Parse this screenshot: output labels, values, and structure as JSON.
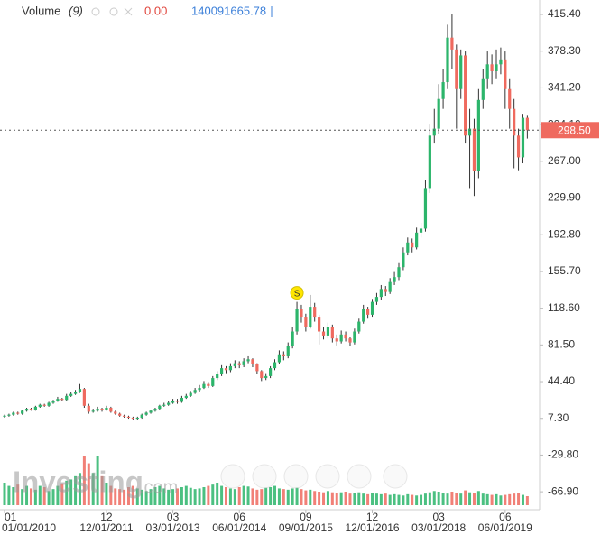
{
  "chart_data": {
    "type": "candlestick",
    "legend": {
      "name": "Volume",
      "period": "(9)",
      "change": "0.00"
    },
    "watermark": {
      "brand": "Investing",
      "suffix": ".com"
    },
    "colors": {
      "up": "#2cb56b",
      "down": "#ef6a5f",
      "wick": "#333333",
      "volume_up": "#2cb56b",
      "volume_down": "#ef6a5f",
      "price_tag": "#ef6a5f"
    },
    "open": [
      9,
      10,
      11,
      13,
      12,
      15,
      17,
      16,
      19,
      21,
      20,
      23,
      25,
      27,
      26,
      30,
      32,
      34,
      37,
      20,
      14,
      15,
      17,
      16,
      18,
      14,
      12,
      10,
      9,
      8,
      7,
      8,
      11,
      13,
      15,
      17,
      20,
      21,
      23,
      25,
      24,
      28,
      30,
      33,
      36,
      38,
      42,
      40,
      48,
      52,
      58,
      56,
      60,
      63,
      61,
      65,
      67,
      62,
      55,
      48,
      50,
      58,
      64,
      72,
      70,
      80,
      95,
      118,
      110,
      100,
      120,
      110,
      95,
      91,
      100,
      88,
      85,
      92,
      88,
      84,
      95,
      105,
      118,
      112,
      125,
      130,
      138,
      135,
      145,
      150,
      160,
      175,
      185,
      180,
      195,
      199,
      240,
      293,
      300,
      330,
      347,
      392,
      380,
      340,
      374,
      293,
      300,
      257,
      329,
      350,
      365,
      358,
      365,
      370,
      340,
      320,
      293,
      271,
      311
    ],
    "high": [
      11,
      12,
      14,
      14,
      16,
      18,
      18,
      20,
      22,
      22,
      24,
      26,
      29,
      28,
      32,
      34,
      36,
      42,
      38,
      22,
      17,
      19,
      18,
      20,
      19,
      15,
      13,
      11,
      10,
      9,
      9,
      12,
      14,
      16,
      18,
      21,
      23,
      25,
      27,
      27,
      30,
      32,
      35,
      38,
      41,
      45,
      44,
      50,
      55,
      61,
      60,
      63,
      66,
      65,
      68,
      70,
      68,
      63,
      56,
      53,
      60,
      67,
      76,
      75,
      84,
      100,
      125,
      122,
      113,
      132,
      124,
      112,
      100,
      104,
      102,
      92,
      96,
      95,
      90,
      98,
      108,
      122,
      120,
      128,
      134,
      142,
      141,
      149,
      156,
      165,
      180,
      190,
      189,
      200,
      205,
      248,
      305,
      320,
      345,
      360,
      405,
      415.4,
      385,
      380,
      378,
      320,
      310,
      340,
      360,
      378,
      375,
      380,
      382,
      378,
      350,
      330,
      300,
      315,
      313
    ],
    "low": [
      8,
      9,
      10,
      11,
      11,
      14,
      15,
      15,
      18,
      19,
      19,
      22,
      24,
      25,
      25,
      29,
      31,
      33,
      18,
      12,
      13,
      14,
      14,
      15,
      13,
      11,
      9,
      8,
      7,
      6,
      6,
      7,
      10,
      12,
      14,
      16,
      19,
      20,
      22,
      22,
      23,
      27,
      29,
      32,
      34,
      37,
      38,
      39,
      46,
      50,
      53,
      54,
      58,
      58,
      59,
      63,
      59,
      52,
      45,
      46,
      48,
      56,
      62,
      66,
      68,
      78,
      92,
      104,
      95,
      98,
      105,
      82,
      87,
      88,
      84,
      81,
      83,
      85,
      80,
      82,
      93,
      103,
      108,
      110,
      122,
      127,
      131,
      133,
      142,
      147,
      157,
      172,
      175,
      178,
      190,
      196,
      235,
      285,
      295,
      320,
      340,
      360,
      300,
      330,
      285,
      240,
      232,
      250,
      320,
      340,
      345,
      350,
      355,
      320,
      300,
      260,
      258,
      265,
      290
    ],
    "close": [
      10,
      11,
      13,
      12,
      15,
      17,
      16,
      19,
      21,
      20,
      23,
      25,
      27,
      26,
      30,
      32,
      34,
      37,
      20,
      14,
      15,
      17,
      16,
      18,
      14,
      12,
      10,
      9,
      8,
      7,
      8,
      11,
      13,
      15,
      17,
      20,
      21,
      23,
      25,
      24,
      28,
      30,
      33,
      36,
      38,
      42,
      40,
      48,
      52,
      58,
      56,
      60,
      63,
      61,
      65,
      67,
      62,
      55,
      48,
      50,
      58,
      64,
      72,
      70,
      80,
      95,
      118,
      110,
      100,
      120,
      110,
      95,
      91,
      100,
      88,
      85,
      92,
      88,
      84,
      95,
      105,
      118,
      112,
      125,
      130,
      138,
      135,
      145,
      150,
      160,
      175,
      185,
      180,
      195,
      199,
      240,
      293,
      300,
      330,
      347,
      392,
      380,
      340,
      374,
      293,
      300,
      257,
      329,
      350,
      365,
      358,
      365,
      370,
      340,
      320,
      293,
      271,
      311,
      298.5
    ],
    "volume": [
      350000000.0,
      300000000.0,
      280000000.0,
      320000000.0,
      250000000.0,
      300000000.0,
      260000000.0,
      240000000.0,
      300000000.0,
      280000000.0,
      220000000.0,
      250000000.0,
      300000000.0,
      340000000.0,
      380000000.0,
      400000000.0,
      450000000.0,
      500000000.0,
      770000000.0,
      650000000.0,
      500000000.0,
      770000000.0,
      450000000.0,
      350000000.0,
      300000000.0,
      260000000.0,
      250000000.0,
      240000000.0,
      280000000.0,
      300000000.0,
      260000000.0,
      240000000.0,
      220000000.0,
      250000000.0,
      280000000.0,
      300000000.0,
      260000000.0,
      240000000.0,
      250000000.0,
      260000000.0,
      280000000.0,
      300000000.0,
      270000000.0,
      250000000.0,
      260000000.0,
      280000000.0,
      300000000.0,
      320000000.0,
      350000000.0,
      300000000.0,
      280000000.0,
      260000000.0,
      250000000.0,
      280000000.0,
      300000000.0,
      290000000.0,
      260000000.0,
      240000000.0,
      250000000.0,
      270000000.0,
      280000000.0,
      300000000.0,
      260000000.0,
      250000000.0,
      240000000.0,
      260000000.0,
      270000000.0,
      250000000.0,
      230000000.0,
      240000000.0,
      220000000.0,
      210000000.0,
      200000000.0,
      220000000.0,
      200000000.0,
      190000000.0,
      200000000.0,
      210000000.0,
      180000000.0,
      190000000.0,
      200000000.0,
      180000000.0,
      170000000.0,
      190000000.0,
      180000000.0,
      170000000.0,
      180000000.0,
      160000000.0,
      170000000.0,
      160000000.0,
      150000000.0,
      170000000.0,
      160000000.0,
      150000000.0,
      160000000.0,
      180000000.0,
      200000000.0,
      220000000.0,
      210000000.0,
      190000000.0,
      180000000.0,
      210000000.0,
      190000000.0,
      180000000.0,
      230000000.0,
      200000000.0,
      190000000.0,
      220000000.0,
      180000000.0,
      170000000.0,
      160000000.0,
      170000000.0,
      150000000.0,
      160000000.0,
      170000000.0,
      180000000.0,
      190000000.0,
      160000000.0,
      140091665.78
    ],
    "annotations": [
      {
        "x": 66,
        "label": "S"
      }
    ],
    "last_price": {
      "value": 298.5,
      "label": "298.50"
    },
    "ylim": [
      -85,
      430
    ],
    "yticks": [
      {
        "value": 415.4,
        "label": "415.40"
      },
      {
        "value": 378.3,
        "label": "378.30"
      },
      {
        "value": 341.2,
        "label": "341.20"
      },
      {
        "value": 304.1,
        "label": "304.10"
      },
      {
        "value": 267,
        "label": "267.00"
      },
      {
        "value": 229.9,
        "label": "229.90"
      },
      {
        "value": 192.8,
        "label": "192.80"
      },
      {
        "value": 155.7,
        "label": "155.70"
      },
      {
        "value": 118.6,
        "label": "118.60"
      },
      {
        "value": 81.5,
        "label": "81.50"
      },
      {
        "value": 44.4,
        "label": "44.40"
      },
      {
        "value": 7.3,
        "label": "7.30"
      },
      {
        "value": -29.8,
        "label": "-29.80"
      },
      {
        "value": -66.9,
        "label": "-66.90"
      }
    ],
    "xticks": [
      {
        "value": 0,
        "label": "01"
      },
      {
        "value": 23,
        "label": "12"
      },
      {
        "value": 38,
        "label": "03"
      },
      {
        "value": 53,
        "label": "06"
      },
      {
        "value": 68,
        "label": "09"
      },
      {
        "value": 83,
        "label": "12"
      },
      {
        "value": 98,
        "label": "03"
      },
      {
        "value": 113,
        "label": "06"
      }
    ],
    "xticks_dates": [
      {
        "value": 0,
        "label": "01/01/2010"
      },
      {
        "value": 23,
        "label": "12/01/2011"
      },
      {
        "value": 38,
        "label": "03/01/2013"
      },
      {
        "value": 53,
        "label": "06/01/2014"
      },
      {
        "value": 68,
        "label": "09/01/2015"
      },
      {
        "value": 83,
        "label": "12/01/2016"
      },
      {
        "value": 98,
        "label": "03/01/2018"
      },
      {
        "value": 113,
        "label": "06/01/2019"
      }
    ]
  }
}
